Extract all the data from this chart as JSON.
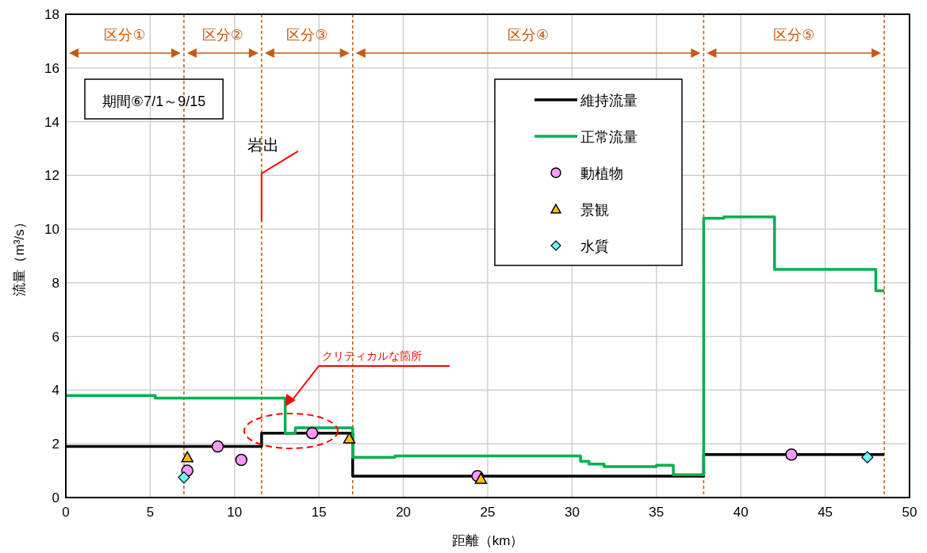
{
  "chart_data": {
    "type": "step",
    "xlabel": "距離（km）",
    "ylabel": "流量（m³/s）",
    "xlim": [
      0,
      50
    ],
    "xticks": [
      0,
      5,
      10,
      15,
      20,
      25,
      30,
      35,
      40,
      45,
      50
    ],
    "ylim": [
      0,
      18
    ],
    "yticks": [
      0,
      2,
      4,
      6,
      8,
      10,
      12,
      14,
      16,
      18
    ],
    "grid": true,
    "legend": "top right",
    "series": [
      {
        "name": "維持流量",
        "type": "step",
        "color": "#000000",
        "x": [
          0,
          11.6,
          17.0,
          37.8,
          48.5
        ],
        "values": [
          1.9,
          2.4,
          0.8,
          1.6,
          1.6
        ]
      },
      {
        "name": "正常流量",
        "type": "step",
        "color": "#00b050",
        "x": [
          0,
          5.3,
          13.0,
          13.6,
          17.0,
          19.5,
          30.5,
          31.0,
          31.9,
          35.0,
          36.0,
          37.8,
          39.0,
          42.0,
          48.0,
          48.5
        ],
        "values": [
          3.8,
          3.7,
          2.4,
          2.6,
          1.5,
          1.55,
          1.35,
          1.25,
          1.15,
          1.2,
          0.85,
          10.4,
          10.45,
          8.5,
          7.7,
          7.7
        ]
      },
      {
        "name": "動植物",
        "type": "scatter",
        "marker": "circle",
        "color": "#ff99ff",
        "x": [
          7.2,
          9.0,
          10.4,
          14.6,
          24.4,
          43.0
        ],
        "values": [
          1.0,
          1.9,
          1.4,
          2.4,
          0.8,
          1.6
        ]
      },
      {
        "name": "景観",
        "type": "scatter",
        "marker": "triangle",
        "color": "#ffc000",
        "x": [
          7.2,
          16.8,
          24.6
        ],
        "values": [
          1.5,
          2.2,
          0.7
        ]
      },
      {
        "name": "水質",
        "type": "scatter",
        "marker": "diamond",
        "color": "#66ffff",
        "x": [
          7.0,
          47.5
        ],
        "values": [
          0.75,
          1.5
        ]
      }
    ],
    "ref_lines": [
      {
        "axis": "x",
        "value": 7.0,
        "color": "#c55a11",
        "line_style": "dashed"
      },
      {
        "axis": "x",
        "value": 11.6,
        "color": "#c55a11",
        "line_style": "dashed"
      },
      {
        "axis": "x",
        "value": 17.0,
        "color": "#c55a11",
        "line_style": "dashed"
      },
      {
        "axis": "x",
        "value": 37.8,
        "color": "#c55a11",
        "line_style": "dashed"
      },
      {
        "axis": "x",
        "value": 48.5,
        "color": "#c55a11",
        "line_style": "dashed"
      }
    ],
    "annotations": [
      "期間⑥7/1～9/15",
      "区分①",
      "区分②",
      "区分③",
      "区分④",
      "区分⑤",
      "クリティカルな箇所",
      {
        "text": "岩出",
        "x": 11.6,
        "y": 10.3
      }
    ]
  }
}
